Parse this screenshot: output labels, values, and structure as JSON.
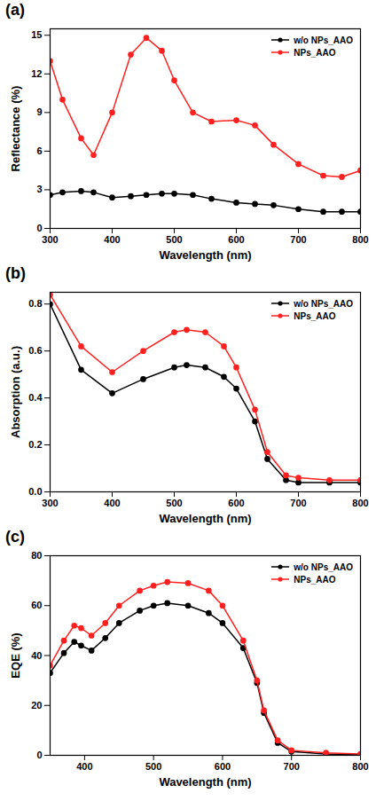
{
  "chart_data": [
    {
      "type": "line",
      "title": "(a)",
      "x_label": "Wavelength (nm)",
      "y_label": "Reflectance (%)",
      "x": [
        300,
        320,
        350,
        370,
        400,
        430,
        455,
        480,
        500,
        530,
        560,
        600,
        630,
        660,
        700,
        740,
        770,
        800
      ],
      "series": [
        {
          "name": "w/o NPs_AAO",
          "color": "#000000",
          "marker": "circle",
          "values": [
            2.6,
            2.8,
            2.9,
            2.8,
            2.4,
            2.5,
            2.6,
            2.7,
            2.7,
            2.6,
            2.3,
            2.0,
            1.9,
            1.8,
            1.5,
            1.3,
            1.3,
            1.3
          ]
        },
        {
          "name": "NPs_AAO",
          "color": "#ff2020",
          "marker": "circle",
          "values": [
            13,
            10,
            7,
            5.7,
            9,
            13.5,
            14.8,
            13.8,
            11.5,
            9,
            8.3,
            8.4,
            8,
            6.5,
            5,
            4.1,
            4,
            4.5
          ]
        }
      ],
      "xlim": [
        300,
        800
      ],
      "xticks": [
        300,
        400,
        500,
        600,
        700,
        800
      ],
      "ylim": [
        0,
        15.5
      ],
      "yticks": [
        0,
        3,
        6,
        9,
        12,
        15
      ],
      "grid": false,
      "legend": "top-right"
    },
    {
      "type": "line",
      "title": "(b)",
      "x_label": "Wavelength (nm)",
      "y_label": "Absorption (a.u.)",
      "x": [
        300,
        350,
        400,
        450,
        500,
        520,
        550,
        580,
        600,
        630,
        650,
        680,
        700,
        750,
        800
      ],
      "series": [
        {
          "name": "w/o NPs_AAO",
          "color": "#000000",
          "marker": "circle",
          "values": [
            0.8,
            0.52,
            0.42,
            0.48,
            0.53,
            0.54,
            0.53,
            0.49,
            0.44,
            0.3,
            0.14,
            0.05,
            0.04,
            0.04,
            0.04
          ]
        },
        {
          "name": "NPs_AAO",
          "color": "#ff2020",
          "marker": "circle",
          "values": [
            0.84,
            0.62,
            0.51,
            0.6,
            0.68,
            0.69,
            0.68,
            0.62,
            0.53,
            0.35,
            0.17,
            0.07,
            0.06,
            0.05,
            0.05
          ]
        }
      ],
      "xlim": [
        300,
        800
      ],
      "xticks": [
        300,
        400,
        500,
        600,
        700,
        800
      ],
      "ylim": [
        0,
        0.85
      ],
      "yticks": [
        {
          "value": 0,
          "label": "0.0"
        },
        0.2,
        0.4,
        0.6,
        0.8
      ],
      "grid": false,
      "legend": "top-right"
    },
    {
      "type": "line",
      "title": "(c)",
      "x_label": "Wavelength (nm)",
      "y_label": "EQE (%)",
      "x": [
        350,
        370,
        385,
        395,
        410,
        430,
        450,
        480,
        500,
        520,
        550,
        580,
        600,
        630,
        650,
        660,
        680,
        700,
        750,
        800
      ],
      "series": [
        {
          "name": "w/o NPs_AAO",
          "color": "#000000",
          "marker": "circle",
          "values": [
            33,
            41,
            45.5,
            44,
            42,
            47,
            53,
            58,
            60,
            61,
            60,
            57,
            53,
            43,
            29,
            17,
            5,
            1.5,
            0.5,
            0.3
          ]
        },
        {
          "name": "NPs_AAO",
          "color": "#ff2020",
          "marker": "circle",
          "values": [
            36,
            46,
            52,
            51,
            48,
            53,
            60,
            66,
            68,
            69.5,
            69,
            66,
            60,
            46,
            30,
            18,
            6,
            2,
            1,
            0.5
          ]
        }
      ],
      "xlim": [
        350,
        800
      ],
      "xticks": [
        400,
        500,
        600,
        700,
        800
      ],
      "ylim": [
        0,
        80
      ],
      "yticks": [
        0,
        20,
        40,
        60,
        80
      ],
      "grid": false,
      "legend": "top-right"
    }
  ]
}
